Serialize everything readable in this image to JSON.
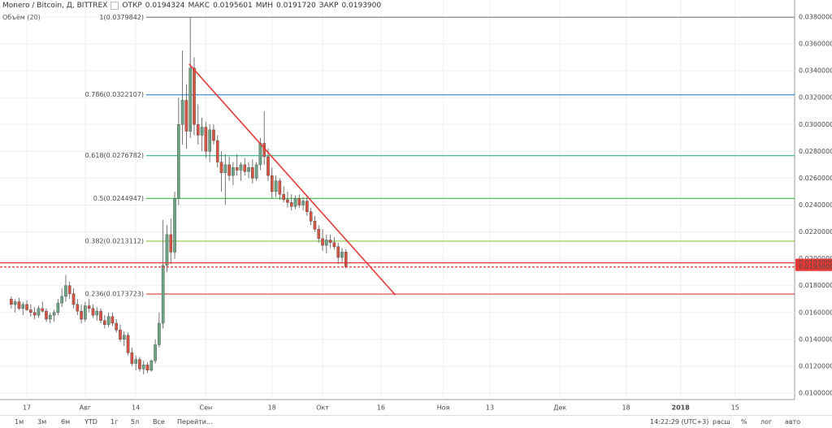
{
  "header": {
    "symbol": "Monero / Bitcoin, Д, BITTREX",
    "stats": [
      {
        "label": "ОТКР",
        "value": "0.0194324"
      },
      {
        "label": "МАКС",
        "value": "0.0195601"
      },
      {
        "label": "МИН",
        "value": "0.0191720"
      },
      {
        "label": "ЗАКР",
        "value": "0.0193900"
      }
    ],
    "volume_label": "Объём (20)"
  },
  "chart_data": {
    "type": "candlestick",
    "x": [
      12,
      13,
      14,
      15,
      16,
      17,
      18,
      19,
      20,
      21,
      22,
      23,
      24,
      25,
      26,
      27,
      28,
      29,
      30,
      31,
      32,
      33,
      34,
      35,
      36,
      37,
      38,
      39,
      40,
      41,
      42,
      43,
      44,
      45,
      46,
      47,
      48,
      49,
      50,
      51,
      52,
      53,
      54,
      55,
      56,
      57,
      58,
      59,
      60,
      61,
      62,
      63,
      64,
      65,
      66,
      67,
      68,
      69,
      70,
      71,
      72,
      73,
      74,
      75,
      76,
      77,
      78,
      79,
      80,
      81,
      82,
      83,
      84,
      85,
      86,
      87,
      88,
      89,
      90,
      91,
      92,
      93,
      94,
      95,
      96,
      97,
      98
    ],
    "open": [
      0.017,
      0.0166,
      0.0168,
      0.0163,
      0.0166,
      0.0162,
      0.016,
      0.0158,
      0.0163,
      0.0161,
      0.0155,
      0.0158,
      0.016,
      0.0167,
      0.0172,
      0.018,
      0.0174,
      0.0166,
      0.0161,
      0.0155,
      0.0165,
      0.0163,
      0.0158,
      0.0161,
      0.0154,
      0.0151,
      0.0157,
      0.0152,
      0.0147,
      0.014,
      0.0143,
      0.013,
      0.0122,
      0.0125,
      0.0118,
      0.0121,
      0.0117,
      0.0124,
      0.0136,
      0.0152,
      0.0195,
      0.0218,
      0.0205,
      0.0245,
      0.03,
      0.0318,
      0.0295,
      0.0342,
      0.03,
      0.0292,
      0.0298,
      0.028,
      0.0296,
      0.0288,
      0.0272,
      0.0264,
      0.027,
      0.0262,
      0.0268,
      0.0266,
      0.027,
      0.0265,
      0.0268,
      0.026,
      0.027,
      0.0286,
      0.0276,
      0.0262,
      0.025,
      0.0258,
      0.0248,
      0.0244,
      0.0242,
      0.0239,
      0.0245,
      0.024,
      0.0243,
      0.0235,
      0.0228,
      0.0222,
      0.0215,
      0.021,
      0.0214,
      0.0212,
      0.0209,
      0.0201,
      0.0205
    ],
    "high": [
      0.0172,
      0.017,
      0.0171,
      0.0168,
      0.0169,
      0.0166,
      0.0164,
      0.0165,
      0.0168,
      0.0163,
      0.016,
      0.0162,
      0.017,
      0.0178,
      0.0188,
      0.0183,
      0.0178,
      0.017,
      0.0166,
      0.0168,
      0.017,
      0.0166,
      0.0164,
      0.0163,
      0.0158,
      0.016,
      0.016,
      0.0155,
      0.0151,
      0.0146,
      0.0145,
      0.0134,
      0.0128,
      0.0127,
      0.0124,
      0.0123,
      0.0125,
      0.014,
      0.016,
      0.0229,
      0.0225,
      0.023,
      0.025,
      0.032,
      0.0355,
      0.033,
      0.038,
      0.035,
      0.0315,
      0.0305,
      0.0302,
      0.03,
      0.03,
      0.0292,
      0.028,
      0.0278,
      0.0276,
      0.0272,
      0.0278,
      0.0272,
      0.0275,
      0.0272,
      0.0274,
      0.0272,
      0.029,
      0.031,
      0.0282,
      0.0268,
      0.0262,
      0.026,
      0.0254,
      0.025,
      0.0248,
      0.0247,
      0.0248,
      0.0246,
      0.0246,
      0.0238,
      0.0232,
      0.0225,
      0.0222,
      0.0218,
      0.0218,
      0.0216,
      0.0212,
      0.0208,
      0.0207
    ],
    "low": [
      0.0163,
      0.016,
      0.0162,
      0.0158,
      0.0161,
      0.0157,
      0.0155,
      0.0156,
      0.016,
      0.0153,
      0.0152,
      0.0153,
      0.0158,
      0.0164,
      0.0168,
      0.017,
      0.0163,
      0.0158,
      0.0152,
      0.0153,
      0.016,
      0.0156,
      0.0154,
      0.0152,
      0.0148,
      0.0149,
      0.015,
      0.0145,
      0.0138,
      0.0135,
      0.0128,
      0.012,
      0.0117,
      0.0116,
      0.0114,
      0.0115,
      0.0116,
      0.0122,
      0.0134,
      0.0148,
      0.019,
      0.0196,
      0.02,
      0.024,
      0.0285,
      0.0282,
      0.029,
      0.0292,
      0.0285,
      0.028,
      0.0275,
      0.0272,
      0.0285,
      0.0268,
      0.025,
      0.024,
      0.0258,
      0.0255,
      0.0262,
      0.0258,
      0.0262,
      0.026,
      0.0256,
      0.0258,
      0.0266,
      0.027,
      0.0258,
      0.0245,
      0.0246,
      0.0244,
      0.0242,
      0.0238,
      0.0236,
      0.0237,
      0.0238,
      0.0236,
      0.0232,
      0.0225,
      0.022,
      0.0212,
      0.0206,
      0.0204,
      0.0208,
      0.0207,
      0.0196,
      0.0197,
      0.0193
    ],
    "close": [
      0.0166,
      0.0168,
      0.0163,
      0.0166,
      0.0162,
      0.016,
      0.0158,
      0.0163,
      0.0161,
      0.0155,
      0.0158,
      0.016,
      0.0167,
      0.0172,
      0.018,
      0.0174,
      0.0166,
      0.0161,
      0.0155,
      0.0165,
      0.0163,
      0.0158,
      0.0161,
      0.0154,
      0.0151,
      0.0157,
      0.0152,
      0.0147,
      0.014,
      0.0143,
      0.013,
      0.0122,
      0.0125,
      0.0118,
      0.0121,
      0.0117,
      0.0124,
      0.0136,
      0.0152,
      0.0195,
      0.0218,
      0.0205,
      0.0245,
      0.03,
      0.0318,
      0.0295,
      0.0342,
      0.03,
      0.0292,
      0.0298,
      0.028,
      0.0296,
      0.0288,
      0.0272,
      0.0264,
      0.027,
      0.0262,
      0.0268,
      0.0266,
      0.027,
      0.0265,
      0.0268,
      0.026,
      0.027,
      0.0286,
      0.0276,
      0.0262,
      0.025,
      0.0258,
      0.0248,
      0.0244,
      0.0242,
      0.0239,
      0.0245,
      0.024,
      0.0243,
      0.0235,
      0.0228,
      0.0222,
      0.0215,
      0.021,
      0.0214,
      0.0212,
      0.0209,
      0.0201,
      0.0205,
      0.0194
    ],
    "up_color": "#6ba583",
    "down_color": "#d75442",
    "xlim": [
      9.1,
      213.3
    ],
    "xticks": [
      {
        "value": 16,
        "label": "17"
      },
      {
        "value": 31,
        "label": "Авг"
      },
      {
        "value": 44,
        "label": "14"
      },
      {
        "value": 62,
        "label": "Сен"
      },
      {
        "value": 79,
        "label": "18"
      },
      {
        "value": 92,
        "label": "Окт"
      },
      {
        "value": 107,
        "label": "16"
      },
      {
        "value": 123,
        "label": "Ноя"
      },
      {
        "value": 135,
        "label": "13"
      },
      {
        "value": 153,
        "label": "Дек"
      },
      {
        "value": 170,
        "label": "18"
      },
      {
        "value": 184,
        "label": "2018"
      },
      {
        "value": 198,
        "label": "15"
      }
    ],
    "ylim": [
      0.009515,
      0.03927
    ],
    "yticks": [
      {
        "value": 0.01,
        "label": "0.0100000"
      },
      {
        "value": 0.012,
        "label": "0.0120000"
      },
      {
        "value": 0.014,
        "label": "0.0140000"
      },
      {
        "value": 0.016,
        "label": "0.0160000"
      },
      {
        "value": 0.018,
        "label": "0.0180000"
      },
      {
        "value": 0.02,
        "label": "0.0200000"
      },
      {
        "value": 0.022,
        "label": "0.0220000"
      },
      {
        "value": 0.024,
        "label": "0.0240000"
      },
      {
        "value": 0.026,
        "label": "0.0260000"
      },
      {
        "value": 0.028,
        "label": "0.0280000"
      },
      {
        "value": 0.03,
        "label": "0.0300000"
      },
      {
        "value": 0.032,
        "label": "0.0320000"
      },
      {
        "value": 0.034,
        "label": "0.0340000"
      },
      {
        "value": 0.036,
        "label": "0.0360000"
      },
      {
        "value": 0.038,
        "label": "0.0380000"
      }
    ],
    "grid": true,
    "fib_levels": [
      {
        "value": 0.0379842,
        "label": "1(0.0379842)",
        "color": "#888888"
      },
      {
        "value": 0.0322107,
        "label": "0.786(0.0322107)",
        "color": "#3d8bd9"
      },
      {
        "value": 0.0276782,
        "label": "0.618(0.0276782)",
        "color": "#2eb88a"
      },
      {
        "value": 0.0244947,
        "label": "0.5(0.0244947)",
        "color": "#3cb943"
      },
      {
        "value": 0.0213112,
        "label": "0.382(0.0213112)",
        "color": "#8dc63f"
      },
      {
        "value": 0.0173723,
        "label": "0.236(0.0173723)",
        "color": "#e0403a"
      }
    ],
    "price_lines": [
      {
        "value": 0.0197,
        "label": "0.0197000",
        "color": "#e53935",
        "dashed": false
      },
      {
        "value": 0.01939,
        "label": "0.0193900",
        "color": "#e53935",
        "dashed": true
      }
    ],
    "trend_line": {
      "x": [
        57.7,
        110.7
      ],
      "y": [
        0.0345,
        0.0173
      ],
      "color": "#e53935"
    }
  },
  "toolbar": {
    "ranges": [
      "1м",
      "3м",
      "6м",
      "YTD",
      "1г",
      "5л",
      "Все",
      "Перейти..."
    ],
    "time": "14:22:29 (UTC+3)",
    "options": [
      "расш",
      "%",
      "лог",
      "авто"
    ]
  }
}
